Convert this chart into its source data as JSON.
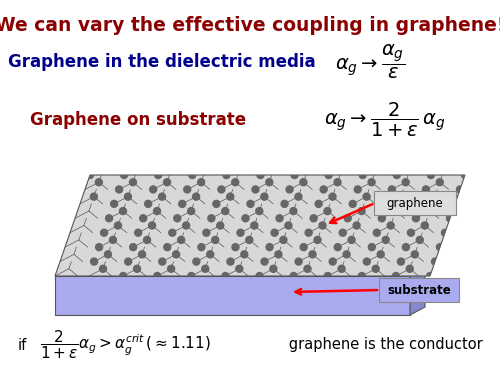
{
  "title": "We can vary the effective coupling in graphene!",
  "title_color": "#8B0000",
  "title_fontsize": 13.5,
  "line1_label": "Graphene in the dielectric media",
  "line1_color": "#00008B",
  "line1_fontsize": 12,
  "line1_formula": "$\\alpha_g \\rightarrow \\dfrac{\\alpha_g}{\\varepsilon}$",
  "line2_label": "Graphene on substrate",
  "line2_color": "#8B0000",
  "line2_fontsize": 12,
  "line2_formula": "$\\alpha_g \\rightarrow \\dfrac{2}{1+\\varepsilon}\\,\\alpha_g$",
  "footer_text_1": "if   ",
  "footer_formula": "$\\dfrac{2}{1+\\varepsilon}\\alpha_g > \\alpha_g^{crit}\\,(\\approx 1.11)$",
  "footer_text_2": "   graphene is the conductor",
  "footer_color": "#000000",
  "footer_fontsize": 10.5,
  "graphene_label": "graphene",
  "substrate_label": "substrate",
  "bg_color": "#ffffff",
  "substrate_color": "#aaaaee",
  "graphene_label_box_color": "#dddddd",
  "substrate_label_box_color": "#aaaaee"
}
